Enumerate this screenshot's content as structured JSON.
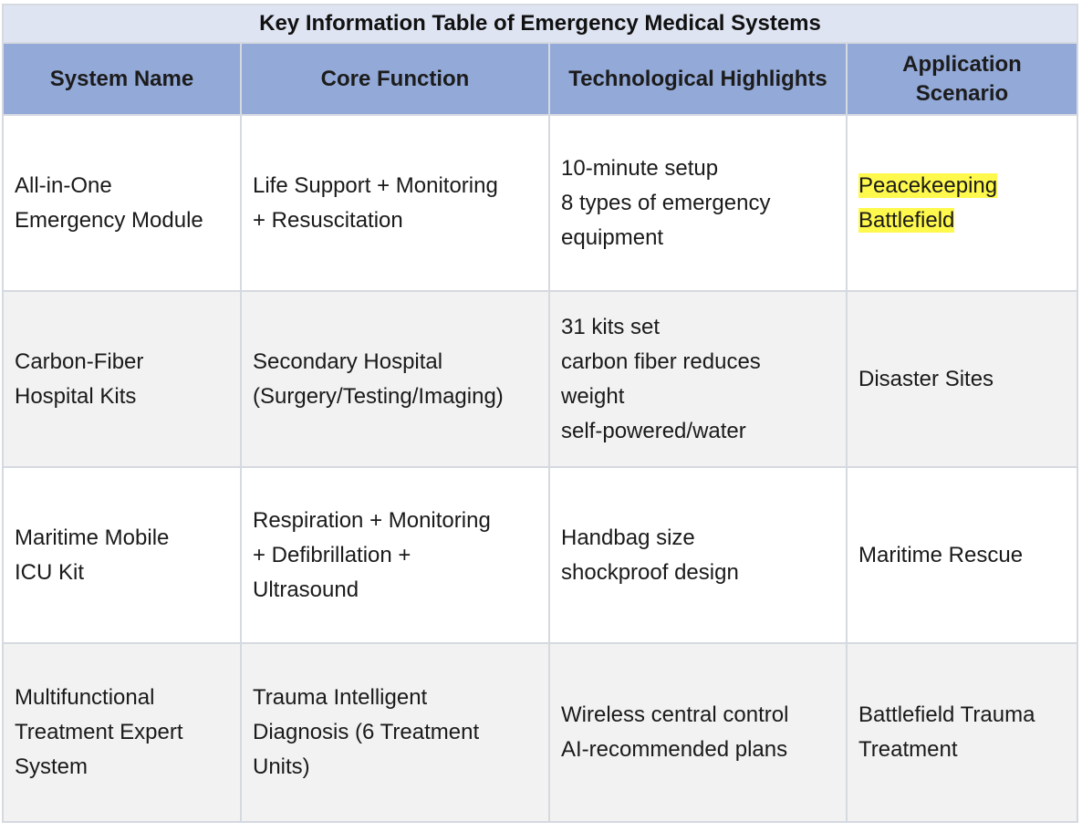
{
  "table": {
    "title": "Key Information Table of Emergency Medical Systems",
    "headers": [
      [
        "System Name"
      ],
      [
        "Core Function"
      ],
      [
        "Technological Highlights"
      ],
      [
        "Application",
        "Scenario"
      ]
    ],
    "rows": [
      {
        "system": [
          "All-in-One",
          "Emergency Module"
        ],
        "function": [
          "Life Support + Monitoring",
          "+ Resuscitation"
        ],
        "highlights": [
          "10-minute setup",
          "8 types of emergency",
          "equipment"
        ],
        "scenario": [
          "Peacekeeping",
          "Battlefield"
        ]
      },
      {
        "system": [
          "Carbon-Fiber",
          "Hospital Kits"
        ],
        "function": [
          "Secondary Hospital",
          "(Surgery/Testing/Imaging)"
        ],
        "highlights": [
          "31 kits set",
          "carbon fiber reduces",
          "weight",
          "self-powered/water"
        ],
        "scenario": [
          "Disaster Sites"
        ]
      },
      {
        "system": [
          "Maritime Mobile",
          "ICU Kit"
        ],
        "function": [
          "Respiration + Monitoring",
          "+ Defibrillation +",
          "Ultrasound"
        ],
        "highlights": [
          "Handbag size",
          "shockproof design"
        ],
        "scenario": [
          "Maritime Rescue"
        ]
      },
      {
        "system": [
          "Multifunctional",
          "Treatment Expert",
          "System"
        ],
        "function": [
          "Trauma Intelligent",
          "Diagnosis (6 Treatment",
          "Units)"
        ],
        "highlights": [
          "Wireless central control",
          "AI-recommended plans"
        ],
        "scenario": [
          "Battlefield Trauma",
          "Treatment"
        ]
      }
    ]
  },
  "colors": {
    "title_bg": "#dfe4f3",
    "header_bg": "#93a9d8",
    "row_alt_bg": "#f2f2f2",
    "highlight": "#fff94d",
    "border": "#d5d9e0"
  }
}
